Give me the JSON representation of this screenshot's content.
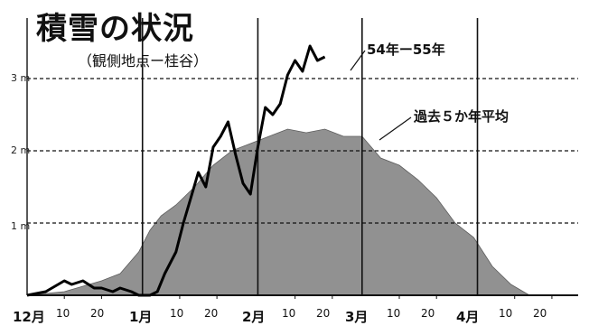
{
  "title": "積雪の状況",
  "subtitle": "（観側地点ー桂谷）",
  "chart_data": {
    "type": "area",
    "ylim": [
      0,
      3.5
    ],
    "y_ticks": [
      "1 m",
      "2 m",
      "3 m"
    ],
    "x_month_labels": [
      "12月",
      "1月",
      "2月",
      "3月",
      "4月"
    ],
    "x_day_labels": [
      "10",
      "20",
      "10",
      "20",
      "10",
      "20",
      "10",
      "20",
      "10",
      "20"
    ],
    "series": [
      {
        "name": "過去５か年平均",
        "style": "filled-area",
        "color": "#8c8c8c",
        "x": [
          0,
          10,
          20,
          25,
          30,
          33,
          36,
          40,
          45,
          50,
          55,
          60,
          65,
          70,
          75,
          80,
          85,
          90,
          95,
          100,
          105,
          110,
          115,
          120,
          125,
          130,
          135
        ],
        "y": [
          0,
          0.05,
          0.2,
          0.3,
          0.6,
          0.9,
          1.1,
          1.25,
          1.5,
          1.8,
          2.0,
          2.1,
          2.2,
          2.3,
          2.25,
          2.3,
          2.2,
          2.2,
          1.9,
          1.8,
          1.6,
          1.35,
          1.0,
          0.8,
          0.4,
          0.15,
          0
        ]
      },
      {
        "name": "54年ー55年",
        "style": "line",
        "color": "#000000",
        "x": [
          0,
          5,
          10,
          12,
          15,
          18,
          20,
          23,
          25,
          28,
          30,
          33,
          35,
          37,
          40,
          42,
          44,
          46,
          48,
          50,
          52,
          54,
          56,
          58,
          60,
          62,
          64,
          66,
          68,
          70,
          72,
          74,
          76,
          78,
          80
        ],
        "y": [
          0,
          0.05,
          0.2,
          0.15,
          0.2,
          0.1,
          0.1,
          0.05,
          0.1,
          0.05,
          0.0,
          0.0,
          0.05,
          0.3,
          0.6,
          1.0,
          1.35,
          1.7,
          1.5,
          2.05,
          2.2,
          2.4,
          1.95,
          1.55,
          1.4,
          2.05,
          2.6,
          2.5,
          2.65,
          3.05,
          3.25,
          3.1,
          3.45,
          3.25,
          3.3
        ]
      }
    ],
    "reference_lines_y": [
      1,
      2,
      3
    ],
    "grid": false,
    "month_divider_lines": true
  }
}
